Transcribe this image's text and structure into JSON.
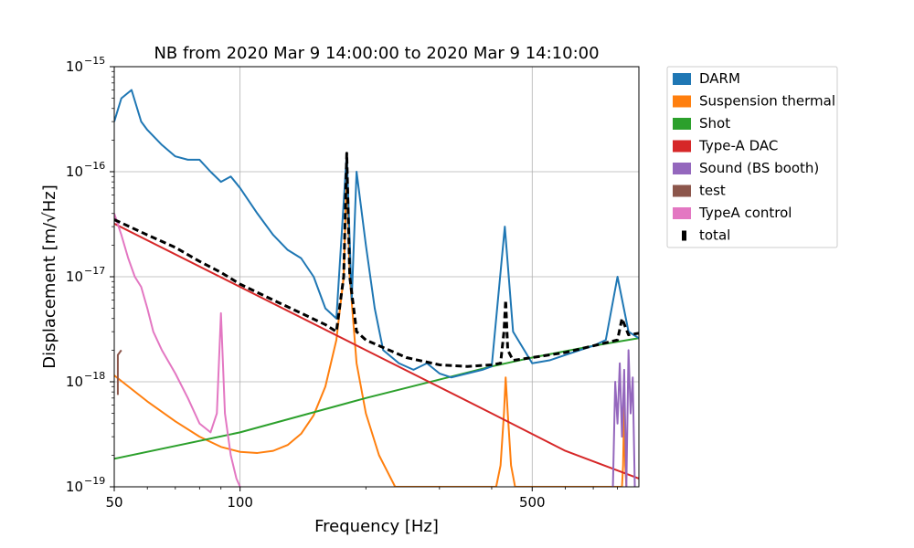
{
  "chart_data": {
    "type": "line",
    "title": "NB from 2020 Mar 9 14:00:00 to 2020 Mar 9 14:10:00",
    "xlabel": "Frequency [Hz]",
    "ylabel": "Displacement [m/√Hz]",
    "xscale": "log",
    "yscale": "log",
    "xlim": [
      50,
      900
    ],
    "ylim": [
      1e-19,
      1e-15
    ],
    "grid": true,
    "legend_position": "outside-top-right",
    "x_ticks": [
      {
        "value": 50,
        "label": "50"
      },
      {
        "value": 100,
        "label": "100"
      },
      {
        "value": 500,
        "label": "500"
      }
    ],
    "y_ticks": [
      {
        "value": 1e-19,
        "base": "10",
        "exp": "−19"
      },
      {
        "value": 1e-18,
        "base": "10",
        "exp": "−18"
      },
      {
        "value": 1e-17,
        "base": "10",
        "exp": "−17"
      },
      {
        "value": 1e-16,
        "base": "10",
        "exp": "−16"
      },
      {
        "value": 1e-15,
        "base": "10",
        "exp": "−15"
      }
    ],
    "series": [
      {
        "name": "DARM",
        "color": "#1f77b4",
        "style": "solid",
        "points": [
          [
            50,
            3e-16
          ],
          [
            52,
            5e-16
          ],
          [
            55,
            6e-16
          ],
          [
            58,
            3e-16
          ],
          [
            60,
            2.5e-16
          ],
          [
            65,
            1.8e-16
          ],
          [
            70,
            1.4e-16
          ],
          [
            75,
            1.3e-16
          ],
          [
            80,
            1.3e-16
          ],
          [
            85,
            1e-16
          ],
          [
            90,
            8e-17
          ],
          [
            95,
            9e-17
          ],
          [
            100,
            7e-17
          ],
          [
            110,
            4e-17
          ],
          [
            120,
            2.5e-17
          ],
          [
            130,
            1.8e-17
          ],
          [
            140,
            1.5e-17
          ],
          [
            150,
            1e-17
          ],
          [
            160,
            5e-18
          ],
          [
            170,
            4e-18
          ],
          [
            180,
            1.5e-16
          ],
          [
            185,
            6e-18
          ],
          [
            190,
            1e-16
          ],
          [
            200,
            2e-17
          ],
          [
            210,
            5e-18
          ],
          [
            220,
            2e-18
          ],
          [
            240,
            1.5e-18
          ],
          [
            260,
            1.3e-18
          ],
          [
            280,
            1.5e-18
          ],
          [
            300,
            1.2e-18
          ],
          [
            320,
            1.1e-18
          ],
          [
            350,
            1.2e-18
          ],
          [
            380,
            1.3e-18
          ],
          [
            400,
            1.4e-18
          ],
          [
            430,
            3e-17
          ],
          [
            450,
            3e-18
          ],
          [
            500,
            1.5e-18
          ],
          [
            550,
            1.6e-18
          ],
          [
            600,
            1.8e-18
          ],
          [
            650,
            2e-18
          ],
          [
            700,
            2.2e-18
          ],
          [
            750,
            2.5e-18
          ],
          [
            800,
            1e-17
          ],
          [
            850,
            3e-18
          ],
          [
            900,
            2.6e-18
          ]
        ]
      },
      {
        "name": "Suspension thermal",
        "color": "#ff7f0e",
        "style": "solid",
        "points": [
          [
            50,
            1.15e-18
          ],
          [
            60,
            6.5e-19
          ],
          [
            70,
            4.2e-19
          ],
          [
            80,
            3e-19
          ],
          [
            90,
            2.4e-19
          ],
          [
            100,
            2.15e-19
          ],
          [
            110,
            2.1e-19
          ],
          [
            120,
            2.2e-19
          ],
          [
            130,
            2.5e-19
          ],
          [
            140,
            3.2e-19
          ],
          [
            150,
            4.8e-19
          ],
          [
            160,
            9e-19
          ],
          [
            170,
            2.5e-18
          ],
          [
            177,
            1e-17
          ],
          [
            180,
            1e-16
          ],
          [
            183,
            1e-17
          ],
          [
            190,
            1.5e-18
          ],
          [
            200,
            5e-19
          ],
          [
            215,
            2e-19
          ],
          [
            235,
            1e-19
          ],
          [
            410,
            1e-19
          ],
          [
            420,
            1.6e-19
          ],
          [
            428,
            5e-19
          ],
          [
            432,
            1.1e-18
          ],
          [
            437,
            5e-19
          ],
          [
            445,
            1.6e-19
          ],
          [
            455,
            1e-19
          ],
          [
            820,
            1e-19
          ],
          [
            825,
            1.6e-19
          ],
          [
            830,
            6e-19
          ],
          [
            835,
            1.6e-19
          ],
          [
            840,
            1e-19
          ]
        ]
      },
      {
        "name": "Shot",
        "color": "#2ca02c",
        "style": "solid",
        "points": [
          [
            50,
            1.85e-19
          ],
          [
            100,
            3.3e-19
          ],
          [
            200,
            7e-19
          ],
          [
            300,
            1.05e-18
          ],
          [
            400,
            1.4e-18
          ],
          [
            500,
            1.7e-18
          ],
          [
            700,
            2.2e-18
          ],
          [
            900,
            2.6e-18
          ]
        ]
      },
      {
        "name": "Type-A DAC",
        "color": "#d62728",
        "style": "solid",
        "points": [
          [
            50,
            3.2e-17
          ],
          [
            100,
            8e-18
          ],
          [
            200,
            2e-18
          ],
          [
            400,
            5e-19
          ],
          [
            600,
            2.2e-19
          ],
          [
            900,
            1.2e-19
          ]
        ]
      },
      {
        "name": "Sound (BS booth)",
        "color": "#9467bd",
        "style": "solid",
        "points": [
          [
            780,
            1e-19
          ],
          [
            790,
            1e-18
          ],
          [
            800,
            4e-19
          ],
          [
            810,
            1.5e-18
          ],
          [
            820,
            3e-19
          ],
          [
            830,
            1.3e-18
          ],
          [
            840,
            1e-19
          ],
          [
            850,
            2e-18
          ],
          [
            860,
            5e-19
          ],
          [
            870,
            1.1e-18
          ],
          [
            880,
            1e-19
          ]
        ]
      },
      {
        "name": "test",
        "color": "#8c564b",
        "style": "solid",
        "points": [
          [
            51,
            7.5e-19
          ],
          [
            51,
            1.8e-18
          ],
          [
            52,
            2e-18
          ]
        ]
      },
      {
        "name": "TypeA control",
        "color": "#e377c2",
        "style": "solid",
        "points": [
          [
            50,
            4e-17
          ],
          [
            52,
            2.5e-17
          ],
          [
            54,
            1.5e-17
          ],
          [
            56,
            1e-17
          ],
          [
            58,
            8e-18
          ],
          [
            60,
            5e-18
          ],
          [
            62,
            3e-18
          ],
          [
            65,
            2e-18
          ],
          [
            70,
            1.2e-18
          ],
          [
            75,
            7e-19
          ],
          [
            80,
            4e-19
          ],
          [
            85,
            3.3e-19
          ],
          [
            88,
            5e-19
          ],
          [
            90,
            4.5e-18
          ],
          [
            92,
            5e-19
          ],
          [
            95,
            2e-19
          ],
          [
            98,
            1.2e-19
          ],
          [
            100,
            1e-19
          ]
        ]
      },
      {
        "name": "total",
        "color": "#000000",
        "style": "dashed",
        "points": [
          [
            50,
            3.5e-17
          ],
          [
            60,
            2.5e-17
          ],
          [
            70,
            1.9e-17
          ],
          [
            80,
            1.4e-17
          ],
          [
            90,
            1.1e-17
          ],
          [
            100,
            8.5e-18
          ],
          [
            120,
            6e-18
          ],
          [
            140,
            4.5e-18
          ],
          [
            160,
            3.5e-18
          ],
          [
            170,
            3e-18
          ],
          [
            177,
            1e-17
          ],
          [
            180,
            1.5e-16
          ],
          [
            183,
            1e-17
          ],
          [
            190,
            3e-18
          ],
          [
            200,
            2.5e-18
          ],
          [
            250,
            1.7e-18
          ],
          [
            300,
            1.45e-18
          ],
          [
            350,
            1.4e-18
          ],
          [
            400,
            1.45e-18
          ],
          [
            420,
            1.5e-18
          ],
          [
            428,
            3e-18
          ],
          [
            432,
            6e-18
          ],
          [
            437,
            2e-18
          ],
          [
            450,
            1.6e-18
          ],
          [
            500,
            1.7e-18
          ],
          [
            600,
            1.9e-18
          ],
          [
            700,
            2.2e-18
          ],
          [
            800,
            2.5e-18
          ],
          [
            820,
            4e-18
          ],
          [
            850,
            2.8e-18
          ],
          [
            900,
            2.9e-18
          ]
        ]
      }
    ]
  }
}
